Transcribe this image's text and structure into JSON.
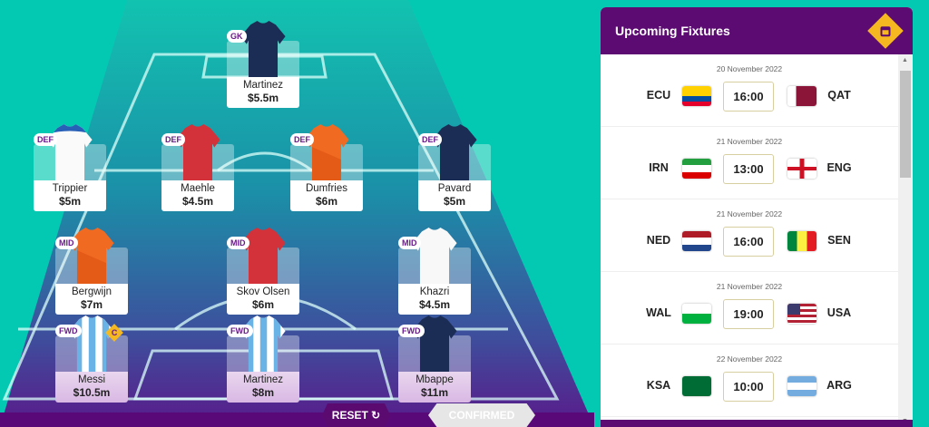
{
  "colors": {
    "background": "#03c9b3",
    "purple": "#5c0b72",
    "captain": "#f5b820"
  },
  "players": [
    {
      "pos": "GK",
      "name": "Martinez",
      "price": "$5.5m",
      "kit": "navy"
    },
    {
      "pos": "DEF",
      "name": "Trippier",
      "price": "$5m",
      "kit": "white-blue"
    },
    {
      "pos": "DEF",
      "name": "Maehle",
      "price": "$4.5m",
      "kit": "red"
    },
    {
      "pos": "DEF",
      "name": "Dumfries",
      "price": "$6m",
      "kit": "orange"
    },
    {
      "pos": "DEF",
      "name": "Pavard",
      "price": "$5m",
      "kit": "navy"
    },
    {
      "pos": "MID",
      "name": "Bergwijn",
      "price": "$7m",
      "kit": "orange"
    },
    {
      "pos": "MID",
      "name": "Skov Olsen",
      "price": "$6m",
      "kit": "red"
    },
    {
      "pos": "MID",
      "name": "Khazri",
      "price": "$4.5m",
      "kit": "white"
    },
    {
      "pos": "FWD",
      "name": "Messi",
      "price": "$10.5m",
      "kit": "stripes",
      "captain": "C"
    },
    {
      "pos": "FWD",
      "name": "Martinez",
      "price": "$8m",
      "kit": "stripes"
    },
    {
      "pos": "FWD",
      "name": "Mbappe",
      "price": "$11m",
      "kit": "navy"
    }
  ],
  "actions": {
    "reset": "RESET",
    "confirmed": "CONFIRMED"
  },
  "fixtures_panel": {
    "title": "Upcoming Fixtures",
    "icon": "calendar-icon",
    "fixtures": [
      {
        "date": "20 November 2022",
        "home": "ECU",
        "away": "QAT",
        "time": "16:00"
      },
      {
        "date": "21 November 2022",
        "home": "IRN",
        "away": "ENG",
        "time": "13:00"
      },
      {
        "date": "21 November 2022",
        "home": "NED",
        "away": "SEN",
        "time": "16:00"
      },
      {
        "date": "21 November 2022",
        "home": "WAL",
        "away": "USA",
        "time": "19:00"
      },
      {
        "date": "22 November 2022",
        "home": "KSA",
        "away": "ARG",
        "time": "10:00"
      }
    ]
  }
}
